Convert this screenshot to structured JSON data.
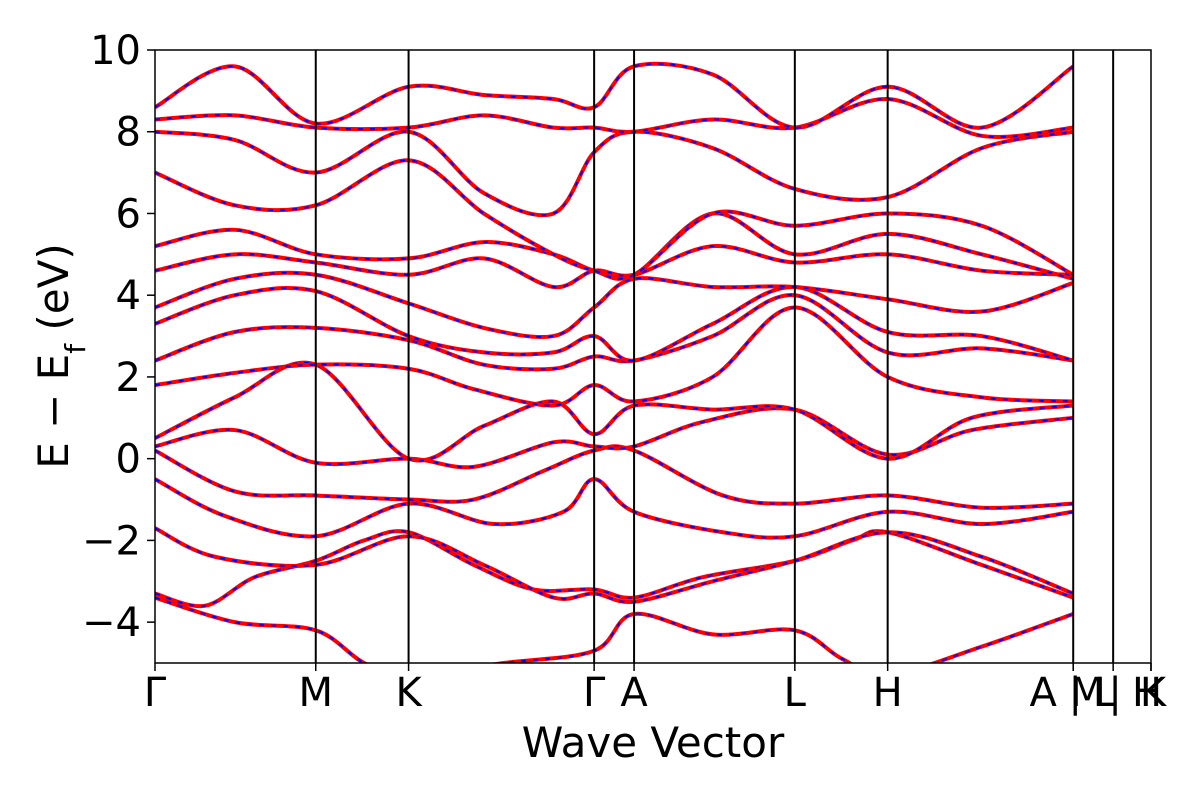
{
  "chart_data": {
    "type": "line",
    "xlabel": "Wave Vector",
    "ylabel": "E − E",
    "ylabel_sub": "f",
    "ylabel_unit": " (eV)",
    "ylim": [
      -5,
      10
    ],
    "yticks": [
      -4,
      -2,
      0,
      2,
      4,
      6,
      8,
      10
    ],
    "ytick_labels": [
      "−4",
      "−2",
      "0",
      "2",
      "4",
      "6",
      "8",
      "10"
    ],
    "xlim": [
      0,
      10
    ],
    "high_symmetry_points": [
      {
        "label": "Γ",
        "x": 0.0
      },
      {
        "label": "M",
        "x": 1.614
      },
      {
        "label": "K",
        "x": 2.546
      },
      {
        "label": "Γ",
        "x": 4.409
      },
      {
        "label": "A",
        "x": 4.81
      },
      {
        "label": "L",
        "x": 6.424
      },
      {
        "label": "H",
        "x": 7.356
      },
      {
        "label": "A",
        "x": 9.219
      },
      {
        "label": "L",
        "x": 9.219
      },
      {
        "label": "M",
        "x": 9.62
      },
      {
        "label": "H",
        "x": 10.0
      },
      {
        "label": "K",
        "x": 10.0
      }
    ],
    "tick_labels_shown": [
      "Γ",
      "M",
      "K",
      "Γ",
      "A",
      "L",
      "H",
      "A",
      "|",
      "M",
      "L",
      "|",
      "H",
      "K"
    ],
    "vlines_x": [
      1.614,
      2.546,
      4.409,
      4.81,
      6.424,
      7.356,
      9.219,
      9.62
    ],
    "grid": false,
    "legend": "none",
    "series_colors": {
      "primary": "#ff0000",
      "overlay": "#0000ff"
    },
    "series_style": {
      "primary": "solid",
      "overlay": "dashed"
    },
    "bands": [
      {
        "x": [
          0,
          0.8,
          1.614,
          2.1,
          2.546,
          3.5,
          4.409,
          4.81,
          5.6,
          6.424,
          6.9,
          7.356,
          8.3,
          9.219
        ],
        "y": [
          -3.4,
          -4.0,
          -4.2,
          -5.0,
          -5.3,
          -5.0,
          -4.7,
          -3.8,
          -4.3,
          -4.2,
          -4.9,
          -5.3,
          -4.6,
          -3.8
        ]
      },
      {
        "x": [
          0,
          0.5,
          1.0,
          1.614,
          2.1,
          2.546,
          3.2,
          3.8,
          4.409,
          4.81,
          5.5,
          6.424,
          7.0,
          7.356,
          8.3,
          9.219
        ],
        "y": [
          -3.3,
          -3.6,
          -2.9,
          -2.5,
          -2.0,
          -1.8,
          -2.6,
          -3.2,
          -3.2,
          -3.4,
          -2.9,
          -2.5,
          -2.0,
          -1.8,
          -2.6,
          -3.4
        ]
      },
      {
        "x": [
          0,
          0.6,
          1.614,
          2.546,
          3.3,
          4.0,
          4.409,
          4.81,
          5.6,
          6.424,
          7.356,
          8.3,
          9.219
        ],
        "y": [
          -1.7,
          -2.4,
          -2.6,
          -1.9,
          -2.6,
          -3.4,
          -3.3,
          -3.5,
          -3.0,
          -2.5,
          -1.8,
          -2.4,
          -3.3
        ]
      },
      {
        "x": [
          0,
          0.7,
          1.614,
          2.546,
          3.4,
          4.1,
          4.409,
          4.81,
          5.7,
          6.424,
          7.356,
          8.3,
          9.219
        ],
        "y": [
          -0.5,
          -1.4,
          -1.9,
          -1.1,
          -1.6,
          -1.3,
          -0.5,
          -1.3,
          -1.8,
          -1.9,
          -1.3,
          -1.6,
          -1.3
        ]
      },
      {
        "x": [
          0,
          0.8,
          1.614,
          2.546,
          3.2,
          3.9,
          4.409,
          4.81,
          5.7,
          6.424,
          7.356,
          8.3,
          9.219
        ],
        "y": [
          0.2,
          -0.8,
          -0.9,
          -1.0,
          -1.0,
          -0.3,
          0.2,
          0.2,
          -0.9,
          -1.1,
          -0.9,
          -1.2,
          -1.1
        ]
      },
      {
        "x": [
          0,
          0.8,
          1.614,
          2.546,
          3.2,
          4.0,
          4.409,
          4.81,
          5.5,
          6.424,
          7.356,
          8.2,
          9.219
        ],
        "y": [
          0.3,
          0.7,
          -0.1,
          0.0,
          -0.2,
          0.4,
          0.3,
          0.3,
          0.9,
          1.2,
          0.1,
          0.7,
          1.0
        ]
      },
      {
        "x": [
          0,
          0.8,
          1.614,
          2.546,
          3.3,
          4.0,
          4.409,
          4.81,
          5.6,
          6.424,
          7.356,
          8.2,
          9.219
        ],
        "y": [
          0.5,
          1.5,
          2.3,
          0.0,
          0.8,
          1.4,
          0.6,
          1.3,
          1.2,
          1.2,
          0.0,
          1.0,
          1.3
        ]
      },
      {
        "x": [
          0,
          0.8,
          1.614,
          2.546,
          3.2,
          4.0,
          4.409,
          4.81,
          5.6,
          6.424,
          7.356,
          8.3,
          9.219
        ],
        "y": [
          1.8,
          2.1,
          2.3,
          2.2,
          1.7,
          1.3,
          1.8,
          1.4,
          2.0,
          3.7,
          2.0,
          1.5,
          1.4
        ]
      },
      {
        "x": [
          0,
          0.8,
          1.614,
          2.546,
          3.3,
          4.0,
          4.409,
          4.81,
          5.6,
          6.424,
          7.356,
          8.3,
          9.219
        ],
        "y": [
          2.4,
          3.1,
          3.2,
          2.9,
          2.3,
          2.2,
          2.5,
          2.4,
          3.0,
          4.0,
          2.6,
          2.7,
          2.4
        ]
      },
      {
        "x": [
          0,
          0.8,
          1.614,
          2.546,
          3.3,
          4.0,
          4.409,
          4.81,
          5.6,
          6.424,
          7.356,
          8.3,
          9.219
        ],
        "y": [
          3.3,
          4.0,
          4.1,
          3.0,
          2.6,
          2.6,
          3.0,
          2.4,
          3.3,
          4.2,
          3.1,
          3.0,
          2.4
        ]
      },
      {
        "x": [
          0,
          0.8,
          1.614,
          2.546,
          3.3,
          4.0,
          4.409,
          4.81,
          5.6,
          6.424,
          7.356,
          8.3,
          9.219
        ],
        "y": [
          3.7,
          4.4,
          4.5,
          3.8,
          3.2,
          3.0,
          3.7,
          4.4,
          4.2,
          4.2,
          3.9,
          3.6,
          4.3
        ]
      },
      {
        "x": [
          0,
          0.8,
          1.614,
          2.546,
          3.3,
          4.0,
          4.409,
          4.81,
          5.6,
          6.424,
          7.356,
          8.3,
          9.219
        ],
        "y": [
          4.6,
          5.0,
          4.8,
          4.5,
          4.9,
          4.2,
          4.6,
          4.5,
          5.2,
          4.8,
          5.0,
          4.6,
          4.5
        ]
      },
      {
        "x": [
          0,
          0.8,
          1.614,
          2.546,
          3.3,
          4.0,
          4.409,
          4.81,
          5.6,
          6.424,
          7.356,
          8.3,
          9.219
        ],
        "y": [
          5.2,
          5.6,
          5.0,
          4.9,
          5.3,
          5.0,
          4.6,
          4.5,
          6.0,
          5.0,
          5.5,
          5.0,
          4.4
        ]
      },
      {
        "x": [
          0,
          0.8,
          1.614,
          2.546,
          3.3,
          4.0,
          4.409,
          4.81,
          5.6,
          6.424,
          7.356,
          8.3,
          9.219
        ],
        "y": [
          7.0,
          6.2,
          6.2,
          7.3,
          6.0,
          5.0,
          4.6,
          4.5,
          6.0,
          5.7,
          6.0,
          5.7,
          4.5
        ]
      },
      {
        "x": [
          0,
          0.8,
          1.614,
          2.546,
          3.3,
          4.0,
          4.409,
          4.81,
          5.6,
          6.424,
          7.356,
          8.3,
          9.219
        ],
        "y": [
          8.0,
          7.8,
          7.0,
          8.0,
          6.5,
          6.0,
          7.5,
          8.0,
          7.6,
          6.6,
          6.4,
          7.6,
          8.0
        ]
      },
      {
        "x": [
          0,
          0.8,
          1.614,
          2.546,
          3.3,
          4.0,
          4.409,
          4.81,
          5.6,
          6.424,
          7.356,
          8.3,
          9.219
        ],
        "y": [
          8.3,
          8.4,
          8.1,
          8.1,
          8.4,
          8.1,
          8.1,
          8.0,
          8.3,
          8.1,
          8.8,
          7.9,
          8.1
        ]
      },
      {
        "x": [
          0,
          0.8,
          1.614,
          2.546,
          3.3,
          4.0,
          4.409,
          4.81,
          5.6,
          6.424,
          7.356,
          8.3,
          9.219
        ],
        "y": [
          8.6,
          9.6,
          8.2,
          9.1,
          8.9,
          8.8,
          8.6,
          9.6,
          9.4,
          8.1,
          9.1,
          8.1,
          9.6
        ]
      }
    ]
  }
}
